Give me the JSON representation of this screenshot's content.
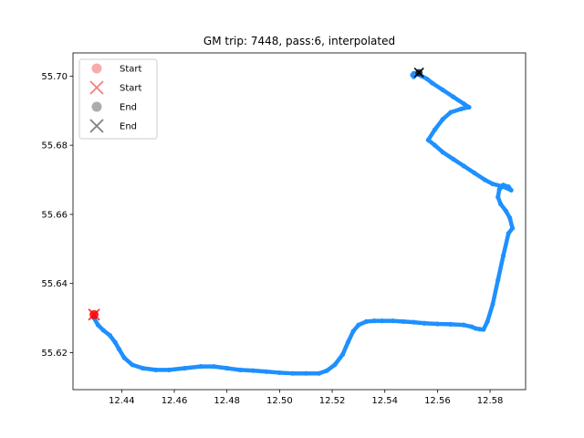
{
  "chart_data": {
    "type": "scatter",
    "title": "GM trip: 7448, pass:6, interpolated",
    "xlabel": "",
    "ylabel": "",
    "xlim": [
      12.4215,
      12.5935
    ],
    "ylim": [
      55.6093,
      55.7067
    ],
    "xticks": [
      "12.44",
      "12.46",
      "12.48",
      "12.50",
      "12.52",
      "12.54",
      "12.56",
      "12.58"
    ],
    "xtick_values": [
      12.44,
      12.46,
      12.48,
      12.5,
      12.52,
      12.54,
      12.56,
      12.58
    ],
    "yticks": [
      "55.62",
      "55.64",
      "55.66",
      "55.68",
      "55.70"
    ],
    "ytick_values": [
      55.62,
      55.64,
      55.66,
      55.68,
      55.7
    ],
    "grid": false,
    "legend": {
      "placement": "top-left",
      "entries": [
        {
          "label": "Start",
          "marker": "circle",
          "color": "#f08080"
        },
        {
          "label": "Start",
          "marker": "x",
          "color": "#f08080"
        },
        {
          "label": "End",
          "marker": "circle",
          "color": "#808080"
        },
        {
          "label": "End",
          "marker": "x",
          "color": "#808080"
        }
      ]
    },
    "series": [
      {
        "color": "#1e90ff",
        "x": [
          12.4295,
          12.431,
          12.433,
          12.4355,
          12.4375,
          12.439,
          12.441,
          12.444,
          12.448,
          12.453,
          12.458,
          12.464,
          12.47,
          12.475,
          12.48,
          12.485,
          12.49,
          12.495,
          12.5,
          12.505,
          12.51,
          12.515,
          12.518,
          12.521,
          12.524,
          12.526,
          12.528,
          12.53,
          12.533,
          12.536,
          12.539,
          12.543,
          12.547,
          12.551,
          12.555,
          12.56,
          12.565,
          12.57,
          12.573,
          12.5745,
          12.576,
          12.5775,
          12.579,
          12.581,
          12.583,
          12.585,
          12.587,
          12.5885,
          12.5875,
          12.586,
          12.584,
          12.583,
          12.5835,
          12.5845,
          12.585,
          12.587,
          12.588,
          12.585,
          12.581,
          12.578,
          12.574,
          12.57,
          12.566,
          12.562,
          12.559,
          12.5565,
          12.559,
          12.562,
          12.565,
          12.569,
          12.572,
          12.57,
          12.566,
          12.562,
          12.558,
          12.556,
          12.554,
          12.5525,
          12.551,
          12.5505,
          12.551,
          12.552,
          12.553
        ],
        "y": [
          55.63,
          55.628,
          55.6265,
          55.625,
          55.623,
          55.621,
          55.6185,
          55.6165,
          55.6155,
          55.615,
          55.615,
          55.6155,
          55.616,
          55.616,
          55.6155,
          55.615,
          55.6148,
          55.6145,
          55.6142,
          55.614,
          55.614,
          55.614,
          55.6148,
          55.6165,
          55.6195,
          55.623,
          55.6262,
          55.628,
          55.629,
          55.6292,
          55.6292,
          55.6292,
          55.629,
          55.6288,
          55.6285,
          55.6283,
          55.6282,
          55.628,
          55.6275,
          55.627,
          55.6268,
          55.6267,
          55.629,
          55.634,
          55.641,
          55.648,
          55.6545,
          55.656,
          55.659,
          55.661,
          55.663,
          55.665,
          55.6672,
          55.668,
          55.6685,
          55.668,
          55.667,
          55.668,
          55.6688,
          55.67,
          55.672,
          55.674,
          55.676,
          55.678,
          55.68,
          55.6815,
          55.6845,
          55.6875,
          55.6895,
          55.6905,
          55.691,
          55.692,
          55.694,
          55.696,
          55.698,
          55.6992,
          55.7,
          55.7005,
          55.7008,
          55.7003,
          55.6998,
          55.7005,
          55.701
        ]
      }
    ],
    "start_marker": {
      "x": 12.4295,
      "y": 55.631,
      "color": "#ff0000"
    },
    "end_marker": {
      "x": 12.553,
      "y": 55.701,
      "color": "#000000"
    }
  }
}
